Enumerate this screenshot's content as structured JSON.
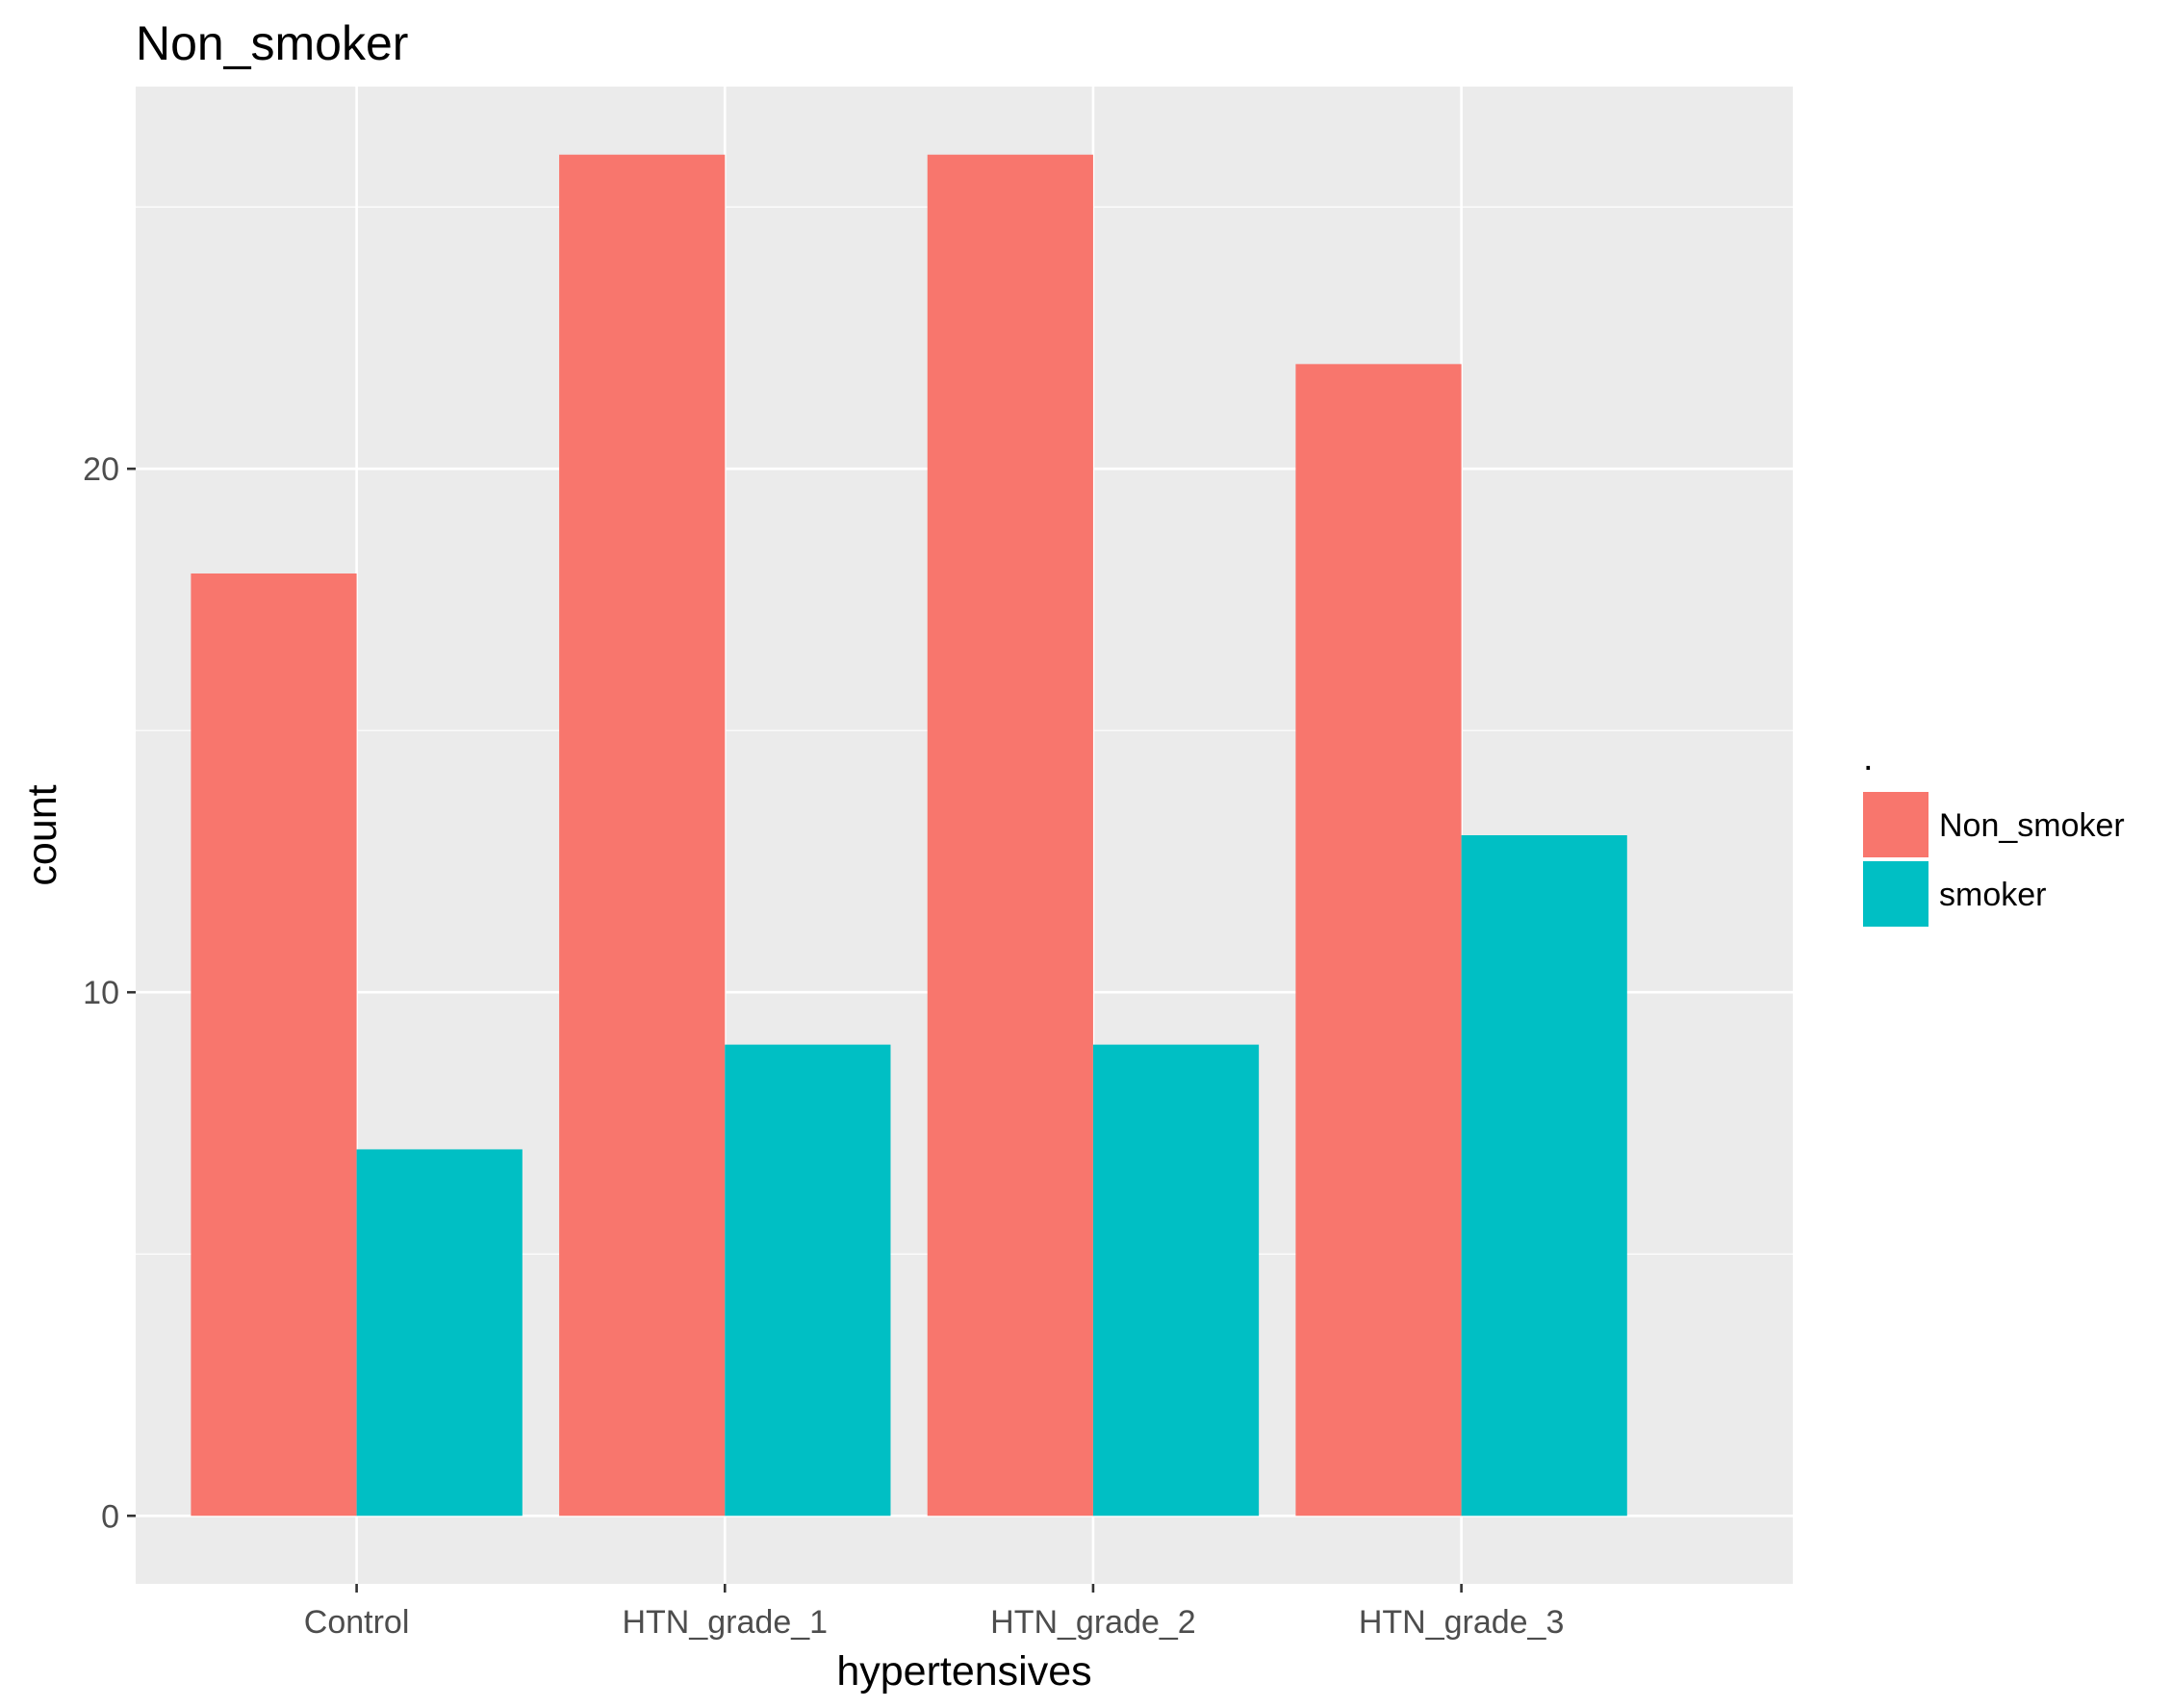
{
  "chart_data": {
    "type": "bar",
    "title": "Non_smoker",
    "xlabel": "hypertensives",
    "ylabel": "count",
    "categories": [
      "Control",
      "HTN_grade_1",
      "HTN_grade_2",
      "HTN_grade_3"
    ],
    "series": [
      {
        "name": "Non_smoker",
        "color": "#F8766D",
        "values": [
          18,
          26,
          26,
          22
        ]
      },
      {
        "name": "smoker",
        "color": "#00BFC4",
        "values": [
          7,
          9,
          9,
          13
        ]
      }
    ],
    "yticks": [
      0,
      10,
      20
    ],
    "ylim": [
      -1.3,
      27.3
    ],
    "grid": true,
    "panel_background": "#EBEBEB",
    "gridline_color": "#FFFFFF",
    "legend": {
      "title": ".",
      "position": "right",
      "items": [
        "Non_smoker",
        "smoker"
      ]
    }
  }
}
